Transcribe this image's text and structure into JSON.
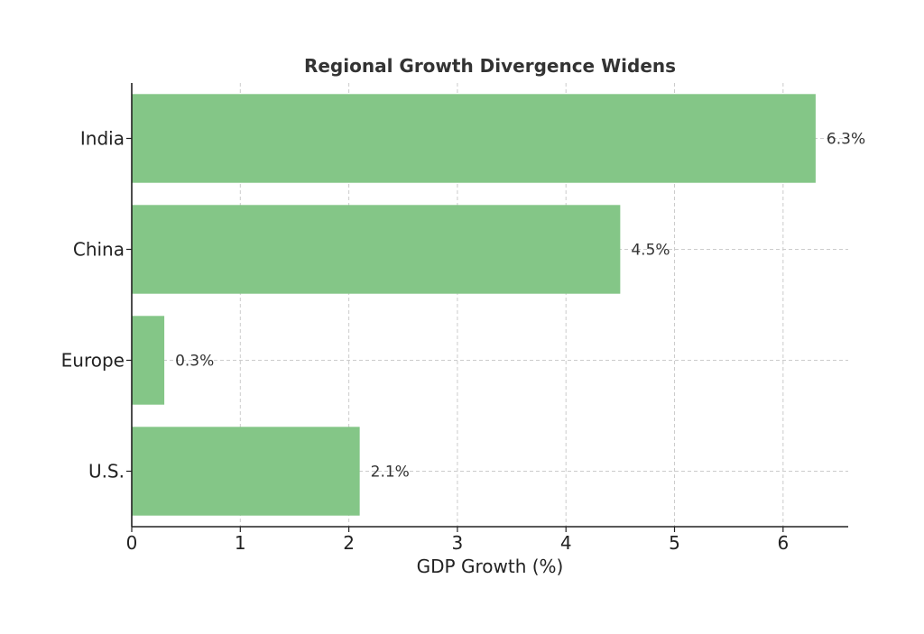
{
  "chart_data": {
    "type": "bar",
    "orientation": "horizontal",
    "title": "Regional Growth Divergence Widens",
    "xlabel": "GDP Growth (%)",
    "ylabel": "",
    "categories": [
      "India",
      "China",
      "Europe",
      "U.S."
    ],
    "values": [
      6.3,
      4.5,
      0.3,
      2.1
    ],
    "value_labels": [
      "6.3%",
      "4.5%",
      "0.3%",
      "2.1%"
    ],
    "xlim": [
      0,
      6.6
    ],
    "xticks": [
      0,
      1,
      2,
      3,
      4,
      5,
      6
    ],
    "grid": true,
    "bar_color": "#84c687"
  }
}
